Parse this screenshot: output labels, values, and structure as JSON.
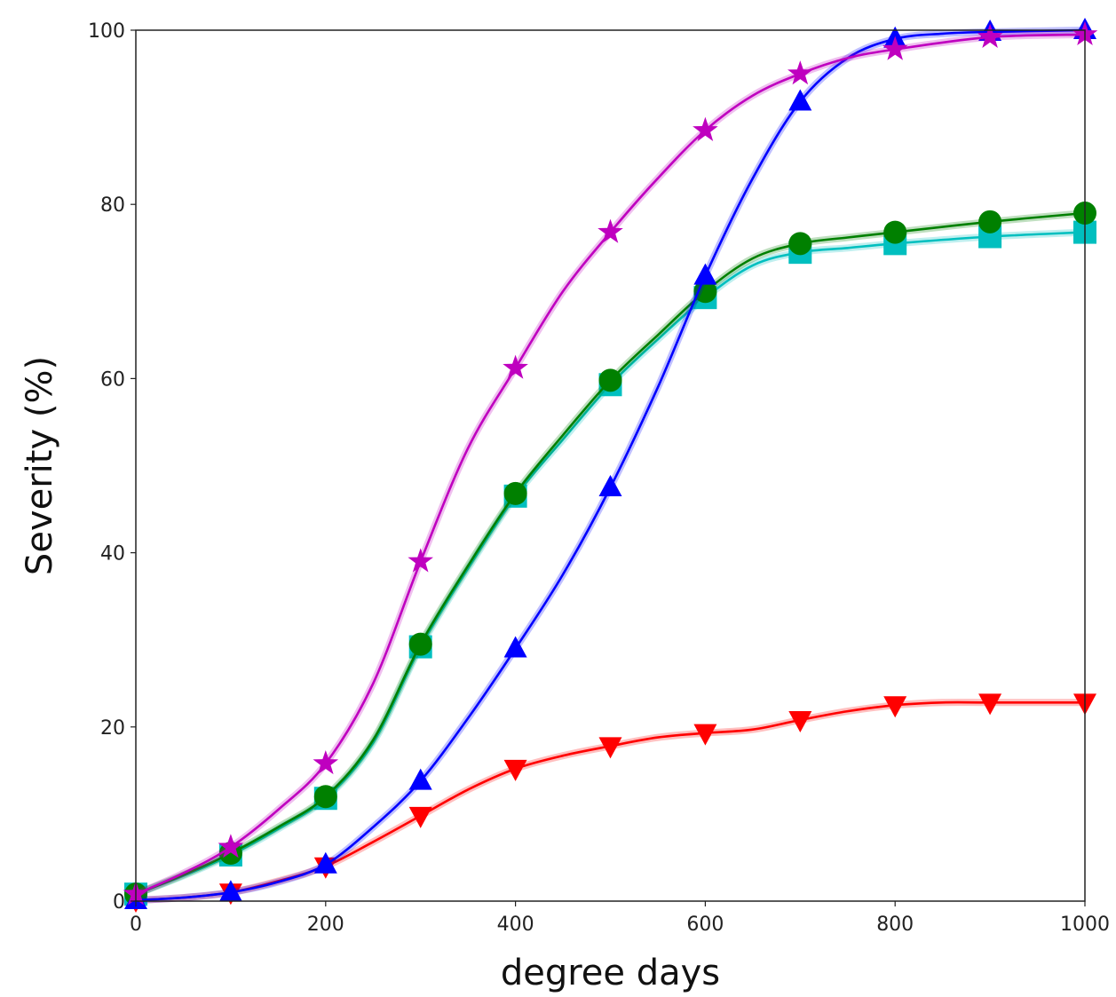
{
  "chart_data": {
    "type": "line",
    "xlabel": "degree days",
    "ylabel": "Severity (%)",
    "xlim": [
      0,
      1000
    ],
    "ylim": [
      0,
      100
    ],
    "xticks": [
      0,
      200,
      400,
      600,
      800,
      1000
    ],
    "yticks": [
      0,
      20,
      40,
      60,
      80,
      100
    ],
    "grid": false,
    "x": [
      0,
      100,
      200,
      300,
      400,
      500,
      600,
      700,
      800,
      900,
      1000
    ],
    "series": [
      {
        "color": "#bf00bf",
        "marker": "star",
        "values": [
          0.8,
          6.2,
          15.8,
          39.0,
          61.2,
          76.8,
          88.5,
          95.0,
          97.8,
          99.2,
          99.5
        ],
        "curve": [
          [
            0,
            0.8
          ],
          [
            50,
            3.2
          ],
          [
            100,
            6.2
          ],
          [
            150,
            10.5
          ],
          [
            200,
            15.8
          ],
          [
            250,
            25.0
          ],
          [
            300,
            39.0
          ],
          [
            350,
            52.0
          ],
          [
            400,
            61.2
          ],
          [
            450,
            70.0
          ],
          [
            500,
            76.8
          ],
          [
            550,
            83.0
          ],
          [
            600,
            88.5
          ],
          [
            650,
            92.5
          ],
          [
            700,
            95.0
          ],
          [
            750,
            96.8
          ],
          [
            800,
            97.8
          ],
          [
            900,
            99.2
          ],
          [
            1000,
            99.5
          ]
        ]
      },
      {
        "color": "#0000ff",
        "marker": "triangle-up",
        "values": [
          0.1,
          1.0,
          4.2,
          13.8,
          29.0,
          47.5,
          71.8,
          91.8,
          99.0,
          99.8,
          100.0
        ],
        "curve": [
          [
            0,
            0.1
          ],
          [
            50,
            0.4
          ],
          [
            100,
            1.0
          ],
          [
            150,
            2.2
          ],
          [
            200,
            4.2
          ],
          [
            250,
            8.5
          ],
          [
            300,
            13.8
          ],
          [
            350,
            21.0
          ],
          [
            400,
            29.0
          ],
          [
            450,
            37.5
          ],
          [
            500,
            47.5
          ],
          [
            550,
            59.0
          ],
          [
            600,
            71.8
          ],
          [
            650,
            83.0
          ],
          [
            700,
            91.8
          ],
          [
            750,
            96.8
          ],
          [
            800,
            99.0
          ],
          [
            850,
            99.6
          ],
          [
            900,
            99.8
          ],
          [
            1000,
            100.0
          ]
        ]
      },
      {
        "color": "#008000",
        "marker": "circle",
        "values": [
          0.8,
          5.5,
          12.0,
          29.5,
          46.8,
          59.8,
          70.0,
          75.5,
          76.8,
          78.0,
          79.0
        ],
        "curve": [
          [
            0,
            0.8
          ],
          [
            50,
            3.0
          ],
          [
            100,
            5.5
          ],
          [
            150,
            8.5
          ],
          [
            200,
            12.0
          ],
          [
            250,
            18.5
          ],
          [
            300,
            29.5
          ],
          [
            350,
            38.5
          ],
          [
            400,
            46.8
          ],
          [
            450,
            53.5
          ],
          [
            500,
            59.8
          ],
          [
            550,
            65.0
          ],
          [
            600,
            70.0
          ],
          [
            650,
            73.8
          ],
          [
            700,
            75.5
          ],
          [
            750,
            76.2
          ],
          [
            800,
            76.8
          ],
          [
            900,
            78.0
          ],
          [
            1000,
            79.0
          ]
        ]
      },
      {
        "color": "#00bfbf",
        "marker": "square",
        "values": [
          0.8,
          5.3,
          11.8,
          29.2,
          46.5,
          59.3,
          69.3,
          74.5,
          75.5,
          76.3,
          76.8
        ],
        "curve": [
          [
            0,
            0.8
          ],
          [
            50,
            2.9
          ],
          [
            100,
            5.3
          ],
          [
            150,
            8.3
          ],
          [
            200,
            11.8
          ],
          [
            250,
            18.2
          ],
          [
            300,
            29.2
          ],
          [
            350,
            38.2
          ],
          [
            400,
            46.5
          ],
          [
            450,
            53.0
          ],
          [
            500,
            59.3
          ],
          [
            550,
            64.5
          ],
          [
            600,
            69.3
          ],
          [
            650,
            73.0
          ],
          [
            700,
            74.5
          ],
          [
            750,
            75.0
          ],
          [
            800,
            75.5
          ],
          [
            900,
            76.3
          ],
          [
            1000,
            76.8
          ]
        ]
      },
      {
        "color": "#ff0000",
        "marker": "triangle-down",
        "values": [
          0.1,
          1.0,
          4.0,
          9.8,
          15.2,
          17.8,
          19.3,
          20.8,
          22.5,
          22.8,
          22.8
        ],
        "curve": [
          [
            0,
            0.1
          ],
          [
            50,
            0.4
          ],
          [
            100,
            1.0
          ],
          [
            150,
            2.3
          ],
          [
            200,
            4.0
          ],
          [
            250,
            6.8
          ],
          [
            300,
            9.8
          ],
          [
            350,
            12.8
          ],
          [
            400,
            15.2
          ],
          [
            450,
            16.7
          ],
          [
            500,
            17.8
          ],
          [
            550,
            18.8
          ],
          [
            600,
            19.3
          ],
          [
            650,
            19.7
          ],
          [
            700,
            20.8
          ],
          [
            750,
            21.8
          ],
          [
            800,
            22.5
          ],
          [
            850,
            22.8
          ],
          [
            900,
            22.8
          ],
          [
            1000,
            22.8
          ]
        ]
      }
    ]
  }
}
